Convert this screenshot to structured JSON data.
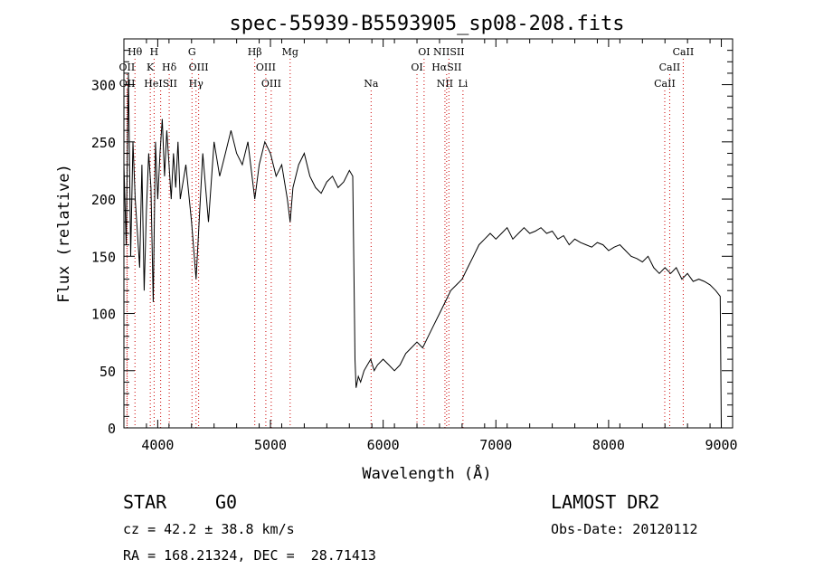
{
  "chart_data": {
    "type": "line",
    "title": "spec-55939-B5593905_sp08-208.fits",
    "xlabel": "Wavelength (Å)",
    "ylabel": "Flux (relative)",
    "xlim": [
      3700,
      9100
    ],
    "ylim": [
      0,
      340
    ],
    "x_ticks": [
      4000,
      5000,
      6000,
      7000,
      8000,
      9000
    ],
    "y_ticks": [
      0,
      50,
      100,
      150,
      200,
      250,
      300
    ],
    "grid": false,
    "line_color": "#000000",
    "marker_line_color": "#cc0000",
    "series": [
      {
        "x": [
          3700,
          3720,
          3740,
          3760,
          3780,
          3800,
          3820,
          3840,
          3860,
          3880,
          3900,
          3920,
          3940,
          3960,
          3980,
          4000,
          4020,
          4040,
          4060,
          4080,
          4100,
          4120,
          4140,
          4160,
          4180,
          4200,
          4250,
          4300,
          4340,
          4400,
          4450,
          4500,
          4550,
          4600,
          4650,
          4700,
          4750,
          4800,
          4861,
          4900,
          4950,
          5000,
          5050,
          5100,
          5150,
          5175,
          5200,
          5250,
          5300,
          5350,
          5400,
          5450,
          5500,
          5550,
          5600,
          5650,
          5700,
          5730,
          5745,
          5750,
          5760,
          5780,
          5800,
          5830,
          5860,
          5890,
          5920,
          5950,
          6000,
          6050,
          6100,
          6150,
          6200,
          6250,
          6300,
          6350,
          6400,
          6450,
          6500,
          6550,
          6600,
          6650,
          6700,
          6750,
          6800,
          6850,
          6900,
          6950,
          7000,
          7050,
          7100,
          7150,
          7200,
          7250,
          7300,
          7350,
          7400,
          7450,
          7500,
          7550,
          7600,
          7650,
          7700,
          7750,
          7800,
          7850,
          7900,
          7950,
          8000,
          8050,
          8100,
          8150,
          8200,
          8250,
          8300,
          8350,
          8400,
          8450,
          8500,
          8550,
          8600,
          8650,
          8700,
          8750,
          8800,
          8850,
          8900,
          8950,
          8990,
          9000
        ],
        "y": [
          230,
          160,
          310,
          150,
          250,
          200,
          170,
          140,
          230,
          120,
          190,
          240,
          210,
          110,
          250,
          200,
          240,
          270,
          220,
          260,
          230,
          200,
          240,
          210,
          250,
          200,
          230,
          180,
          130,
          240,
          180,
          250,
          220,
          240,
          260,
          240,
          230,
          250,
          200,
          230,
          250,
          240,
          220,
          230,
          200,
          180,
          210,
          230,
          240,
          220,
          210,
          205,
          215,
          220,
          210,
          215,
          225,
          220,
          100,
          60,
          35,
          45,
          40,
          50,
          55,
          60,
          50,
          55,
          60,
          55,
          50,
          55,
          65,
          70,
          75,
          70,
          80,
          90,
          100,
          110,
          120,
          125,
          130,
          140,
          150,
          160,
          165,
          170,
          165,
          170,
          175,
          165,
          170,
          175,
          170,
          172,
          175,
          170,
          172,
          165,
          168,
          160,
          165,
          162,
          160,
          158,
          162,
          160,
          155,
          158,
          160,
          155,
          150,
          148,
          145,
          150,
          140,
          135,
          140,
          135,
          140,
          130,
          135,
          128,
          130,
          128,
          125,
          120,
          115,
          0
        ]
      }
    ],
    "line_markers": [
      {
        "label": "Hθ",
        "row": 0,
        "wavelength": 3798
      },
      {
        "label": "H",
        "row": 0,
        "wavelength": 3968
      },
      {
        "label": "G",
        "row": 0,
        "wavelength": 4304
      },
      {
        "label": "Hβ",
        "row": 0,
        "wavelength": 4861
      },
      {
        "label": "Mg",
        "row": 0,
        "wavelength": 5175
      },
      {
        "label": "OI",
        "row": 0,
        "wavelength": 6363
      },
      {
        "label": "NIISII",
        "row": 0,
        "wavelength": 6583
      },
      {
        "label": "CaII",
        "row": 0,
        "wavelength": 8662
      },
      {
        "label": "OII",
        "row": 1,
        "wavelength": 3727
      },
      {
        "label": "K",
        "row": 1,
        "wavelength": 3934
      },
      {
        "label": "Hδ",
        "row": 1,
        "wavelength": 4102
      },
      {
        "label": "OIII",
        "row": 1,
        "wavelength": 4363
      },
      {
        "label": "OIII",
        "row": 1,
        "wavelength": 4959
      },
      {
        "label": "OI",
        "row": 1,
        "wavelength": 6300
      },
      {
        "label": "HαSII",
        "row": 1,
        "wavelength": 6563
      },
      {
        "label": "CaII",
        "row": 1,
        "wavelength": 8542
      },
      {
        "label": "OII",
        "row": 2,
        "wavelength": 3729
      },
      {
        "label": "HeISII",
        "row": 2,
        "wavelength": 4026
      },
      {
        "label": "Hγ",
        "row": 2,
        "wavelength": 4340
      },
      {
        "label": "OIII",
        "row": 2,
        "wavelength": 5007
      },
      {
        "label": "Na",
        "row": 2,
        "wavelength": 5893
      },
      {
        "label": "NII",
        "row": 2,
        "wavelength": 6548
      },
      {
        "label": "Li",
        "row": 2,
        "wavelength": 6708
      },
      {
        "label": "CaII",
        "row": 2,
        "wavelength": 8498
      }
    ]
  },
  "info": {
    "object_class": "STAR",
    "subclass": "G0",
    "survey": "LAMOST DR2",
    "redshift": "cz = 42.2 ± 38.8 km/s",
    "obs_date": "Obs-Date: 20120112",
    "coords": "RA = 168.21324, DEC =  28.71413"
  }
}
